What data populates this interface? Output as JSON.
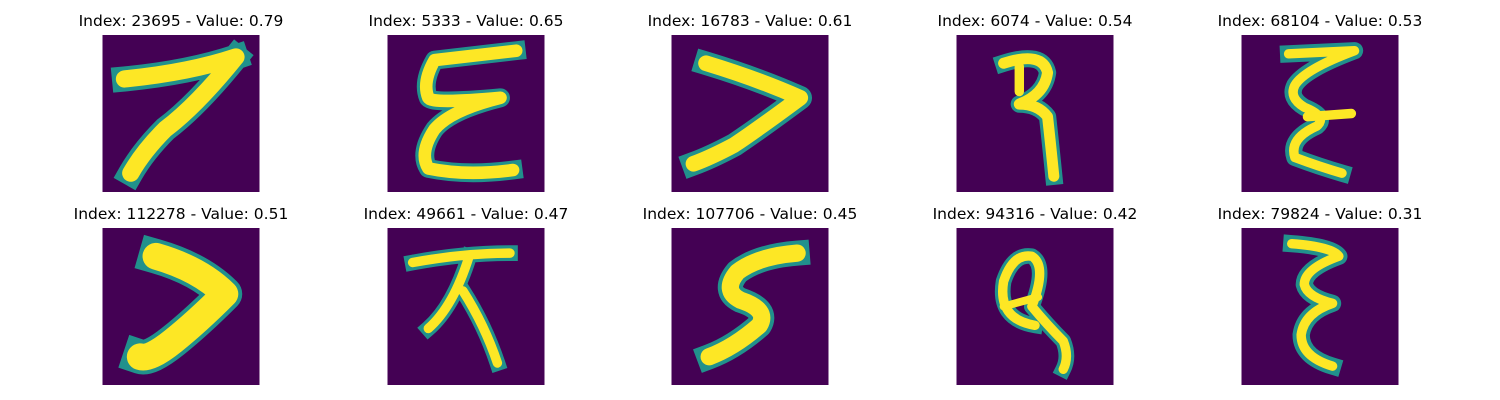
{
  "colors": {
    "background": "#440154",
    "mid_low": "#3b528b",
    "mid": "#21918c",
    "mid_high": "#5ec962",
    "stroke": "#fde725"
  },
  "panels": [
    {
      "index": "23695",
      "value": "0.79",
      "title": "Index: 23695 - Value: 0.79"
    },
    {
      "index": "5333",
      "value": "0.65",
      "title": "Index: 5333 - Value: 0.65"
    },
    {
      "index": "16783",
      "value": "0.61",
      "title": "Index: 16783 - Value: 0.61"
    },
    {
      "index": "6074",
      "value": "0.54",
      "title": "Index: 6074 - Value: 0.54"
    },
    {
      "index": "68104",
      "value": "0.53",
      "title": "Index: 68104 - Value: 0.53"
    },
    {
      "index": "112278",
      "value": "0.51",
      "title": "Index: 112278 - Value: 0.51"
    },
    {
      "index": "49661",
      "value": "0.47",
      "title": "Index: 49661 - Value: 0.47"
    },
    {
      "index": "107706",
      "value": "0.45",
      "title": "Index: 107706 - Value: 0.45"
    },
    {
      "index": "94316",
      "value": "0.42",
      "title": "Index: 94316 - Value: 0.42"
    },
    {
      "index": "79824",
      "value": "0.31",
      "title": "Index: 79824 - Value: 0.31"
    }
  ]
}
